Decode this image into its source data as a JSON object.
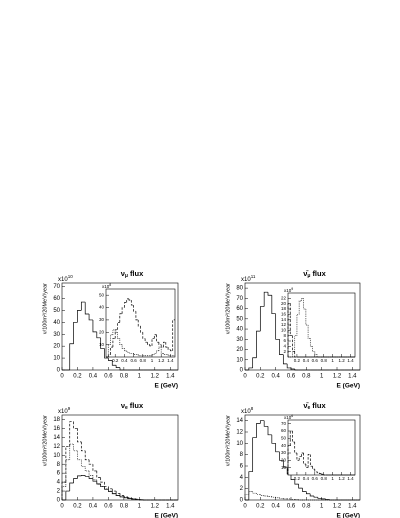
{
  "chart_data": [
    {
      "type": "histogram",
      "title_parts": [
        "ν",
        "μ",
        "flux"
      ],
      "xlabel": "E (GeV)",
      "ylabel": "ν/100m²/20MeV/year",
      "y_multiplier": {
        "base": "x10",
        "exponent": "10"
      },
      "xlim": [
        0,
        1.5
      ],
      "xticks": [
        0,
        0.2,
        0.4,
        0.6,
        0.8,
        1,
        1.2,
        1.4
      ],
      "ylim": [
        0,
        73
      ],
      "yticks": [
        0,
        10,
        20,
        30,
        40,
        50,
        60,
        70
      ],
      "bins": [
        0,
        0.05,
        0.1,
        0.15,
        0.2,
        0.25,
        0.3,
        0.35,
        0.4,
        0.45,
        0.5,
        0.55,
        0.6,
        0.65,
        0.7,
        0.75,
        0.8,
        0.85,
        0.9,
        0.95,
        1,
        1.05,
        1.1,
        1.15,
        1.2,
        1.25,
        1.3,
        1.35,
        1.4,
        1.45,
        1.5
      ],
      "series": [
        {
          "style": "solid",
          "color": "#000000",
          "values": [
            0,
            0,
            22,
            40,
            50,
            57,
            47,
            42,
            32,
            27,
            18,
            10,
            8,
            4,
            2,
            0,
            0,
            0,
            0,
            0,
            0,
            0,
            0,
            0,
            0,
            0,
            0,
            0,
            0,
            0
          ]
        }
      ],
      "inset": {
        "type": "histogram",
        "y_multiplier": {
          "base": "x10",
          "exponent": "8"
        },
        "xlim": [
          0,
          1.5
        ],
        "xticks": [
          0.2,
          0.4,
          0.6,
          0.8,
          1,
          1.2,
          1.4
        ],
        "ylim": [
          0,
          55
        ],
        "yticks": [
          10,
          20,
          30,
          40,
          50
        ],
        "bins": [
          0,
          0.05,
          0.1,
          0.15,
          0.2,
          0.25,
          0.3,
          0.35,
          0.4,
          0.45,
          0.5,
          0.55,
          0.6,
          0.65,
          0.7,
          0.75,
          0.8,
          0.85,
          0.9,
          0.95,
          1,
          1.05,
          1.1,
          1.15,
          1.2,
          1.25,
          1.3,
          1.35,
          1.4,
          1.45,
          1.5
        ],
        "series": [
          {
            "style": "dashed",
            "color": "#000000",
            "values": [
              0,
              2,
              8,
              15,
              22,
              28,
              35,
              40,
              44,
              47,
              46,
              42,
              37,
              30,
              25,
              20,
              15,
              12,
              10,
              9,
              15,
              18,
              12,
              10,
              8,
              12,
              8,
              6,
              5,
              30
            ]
          },
          {
            "style": "dotted",
            "color": "#000000",
            "values": [
              0,
              10,
              18,
              22,
              20,
              15,
              10,
              7,
              5,
              4,
              3,
              3,
              2,
              2,
              1,
              1,
              1,
              1,
              1,
              1,
              2,
              3,
              5,
              8,
              3,
              2,
              2,
              1,
              1,
              1
            ]
          }
        ]
      }
    },
    {
      "type": "histogram",
      "title_parts": [
        "ν̄",
        "μ",
        "flux"
      ],
      "xlabel": "E (GeV)",
      "ylabel": "ν/100m²/20MeV/year",
      "y_multiplier": {
        "base": "x10",
        "exponent": "11"
      },
      "xlim": [
        0,
        1.5
      ],
      "xticks": [
        0,
        0.2,
        0.4,
        0.6,
        0.8,
        1,
        1.2,
        1.4
      ],
      "ylim": [
        0,
        85
      ],
      "yticks": [
        0,
        10,
        20,
        30,
        40,
        50,
        60,
        70,
        80
      ],
      "bins": [
        0,
        0.05,
        0.1,
        0.15,
        0.2,
        0.25,
        0.3,
        0.35,
        0.4,
        0.45,
        0.5,
        0.55,
        0.6,
        0.65,
        0.7,
        0.75,
        0.8,
        0.85,
        0.9,
        0.95,
        1,
        1.05,
        1.1,
        1.15,
        1.2,
        1.25,
        1.3,
        1.35,
        1.4,
        1.45,
        1.5
      ],
      "series": [
        {
          "style": "solid",
          "color": "#000000",
          "values": [
            0,
            2,
            12,
            38,
            62,
            76,
            73,
            55,
            30,
            15,
            6,
            2,
            1,
            0,
            0,
            0,
            0,
            0,
            0,
            0,
            0,
            0,
            0,
            0,
            0,
            0,
            0,
            0,
            0,
            0
          ]
        }
      ],
      "inset": {
        "type": "histogram",
        "y_multiplier": {
          "base": "x10",
          "exponent": "9"
        },
        "xlim": [
          0,
          1.5
        ],
        "xticks": [
          0.2,
          0.4,
          0.6,
          0.8,
          1,
          1.2,
          1.4
        ],
        "ylim": [
          0,
          24
        ],
        "yticks": [
          2,
          4,
          6,
          8,
          10,
          12,
          14,
          16,
          18,
          20,
          22
        ],
        "bins": [
          0,
          0.05,
          0.1,
          0.15,
          0.2,
          0.25,
          0.3,
          0.35,
          0.4,
          0.45,
          0.5,
          0.55,
          0.6,
          0.65,
          0.7,
          0.75,
          0.8,
          0.85,
          0.9,
          0.95,
          1,
          1.05,
          1.1,
          1.15,
          1.2,
          1.25,
          1.3,
          1.35,
          1.4,
          1.45,
          1.5
        ],
        "series": [
          {
            "style": "dotted",
            "color": "#000000",
            "values": [
              0,
              0,
              2,
              8,
              16,
              21,
              22,
              18,
              12,
              7,
              4,
              2,
              1,
              0,
              0,
              0,
              0,
              0,
              0,
              0,
              0,
              0,
              0,
              0,
              0,
              0,
              0,
              0,
              0,
              0
            ]
          },
          {
            "style": "dashed",
            "color": "#000000",
            "values": [
              20,
              8,
              2,
              0,
              0,
              0,
              0,
              0,
              0,
              0,
              0,
              0,
              0,
              0,
              0,
              0,
              0,
              0,
              0,
              0,
              0,
              0,
              0,
              0,
              0,
              0,
              0,
              0,
              0,
              0
            ]
          }
        ]
      }
    },
    {
      "type": "histogram",
      "title_parts": [
        "ν",
        "e",
        "flux"
      ],
      "xlabel": "E (GeV)",
      "ylabel": "ν/100m²/20MeV/year",
      "y_multiplier": {
        "base": "x10",
        "exponent": "9"
      },
      "xlim": [
        0,
        1.5
      ],
      "xticks": [
        0,
        0.2,
        0.4,
        0.6,
        0.8,
        1,
        1.2,
        1.4
      ],
      "ylim": [
        0,
        19
      ],
      "yticks": [
        0,
        2,
        4,
        6,
        8,
        10,
        12,
        14,
        16,
        18
      ],
      "bins": [
        0,
        0.05,
        0.1,
        0.15,
        0.2,
        0.25,
        0.3,
        0.35,
        0.4,
        0.45,
        0.5,
        0.55,
        0.6,
        0.65,
        0.7,
        0.75,
        0.8,
        0.85,
        0.9,
        0.95,
        1,
        1.05,
        1.1,
        1.15,
        1.2,
        1.25,
        1.3,
        1.35,
        1.4,
        1.45,
        1.5
      ],
      "series": [
        {
          "style": "solid",
          "color": "#000000",
          "values": [
            0,
            2,
            3.8,
            4.8,
            5.4,
            5.5,
            5.3,
            4.8,
            4.2,
            3.6,
            3,
            2.4,
            1.9,
            1.4,
            1,
            0.7,
            0.5,
            0.3,
            0.2,
            0.1,
            0.05,
            0,
            0,
            0,
            0,
            0,
            0,
            0,
            0,
            0
          ]
        },
        {
          "style": "dashed",
          "color": "#000000",
          "values": [
            4,
            12,
            17.5,
            16,
            13,
            11,
            9,
            8,
            6.5,
            5,
            4,
            3,
            2.5,
            2,
            1.5,
            1,
            0.7,
            0.5,
            0.3,
            0.2,
            0.1,
            0,
            0,
            0,
            0,
            0,
            0,
            0,
            0,
            0
          ]
        },
        {
          "style": "dotted",
          "color": "#000000",
          "values": [
            3,
            9,
            12.5,
            11,
            9,
            7.5,
            6.5,
            5.5,
            4.5,
            3.5,
            3,
            2.5,
            2,
            1.5,
            1,
            0.7,
            0.5,
            0.3,
            0.2,
            0.1,
            0,
            0,
            0,
            0,
            0,
            0,
            0,
            0,
            0,
            0
          ]
        }
      ]
    },
    {
      "type": "histogram",
      "title_parts": [
        "ν̄",
        "e",
        "flux"
      ],
      "xlabel": "E (GeV)",
      "ylabel": "ν/100m²/20MeV/year",
      "y_multiplier": {
        "base": "x10",
        "exponent": "8"
      },
      "xlim": [
        0,
        1.5
      ],
      "xticks": [
        0,
        0.2,
        0.4,
        0.6,
        0.8,
        1,
        1.2,
        1.4
      ],
      "ylim": [
        0,
        15
      ],
      "yticks": [
        0,
        2,
        4,
        6,
        8,
        10,
        12,
        14
      ],
      "bins": [
        0,
        0.05,
        0.1,
        0.15,
        0.2,
        0.25,
        0.3,
        0.35,
        0.4,
        0.45,
        0.5,
        0.55,
        0.6,
        0.65,
        0.7,
        0.75,
        0.8,
        0.85,
        0.9,
        0.95,
        1,
        1.05,
        1.1,
        1.15,
        1.2,
        1.25,
        1.3,
        1.35,
        1.4,
        1.45,
        1.5
      ],
      "series": [
        {
          "style": "solid",
          "color": "#000000",
          "values": [
            0,
            5,
            11,
            13.5,
            14,
            13,
            11.5,
            10,
            8.5,
            7,
            5.8,
            4.6,
            3.6,
            2.8,
            2.1,
            1.5,
            1.1,
            0.7,
            0.5,
            0.3,
            0.2,
            0.1,
            0,
            0,
            0,
            0,
            0,
            0,
            0,
            0
          ]
        },
        {
          "style": "dotted",
          "color": "#000000",
          "values": [
            1,
            1.5,
            1.2,
            1,
            0.8,
            0.7,
            0.6,
            0.5,
            0.4,
            0.3,
            0.2,
            0.2,
            0.1,
            0.1,
            0,
            0,
            0,
            0,
            0,
            0,
            0,
            0,
            0,
            0,
            0,
            0,
            0,
            0,
            0,
            0
          ]
        }
      ],
      "inset": {
        "type": "histogram",
        "y_multiplier": {
          "base": "x10",
          "exponent": "6"
        },
        "xlim": [
          0,
          1.5
        ],
        "xticks": [
          0.2,
          0.4,
          0.6,
          0.8,
          1,
          1.2,
          1.4
        ],
        "ylim": [
          0,
          75
        ],
        "yticks": [
          10,
          20,
          30,
          40,
          50,
          60,
          70
        ],
        "bins": [
          0,
          0.05,
          0.1,
          0.15,
          0.2,
          0.25,
          0.3,
          0.35,
          0.4,
          0.45,
          0.5,
          0.55,
          0.6,
          0.65,
          0.7,
          0.75,
          0.8,
          0.85,
          0.9,
          0.95,
          1,
          1.05,
          1.1,
          1.15,
          1.2,
          1.25,
          1.3,
          1.35,
          1.4,
          1.45,
          1.5
        ],
        "series": [
          {
            "style": "dashed",
            "color": "#000000",
            "values": [
              40,
              60,
              45,
              30,
              20,
              25,
              30,
              15,
              10,
              28,
              12,
              8,
              5,
              3,
              2,
              1,
              0,
              0,
              0,
              0,
              0,
              0,
              0,
              0,
              0,
              0,
              0,
              0,
              0,
              0
            ]
          }
        ]
      }
    }
  ]
}
